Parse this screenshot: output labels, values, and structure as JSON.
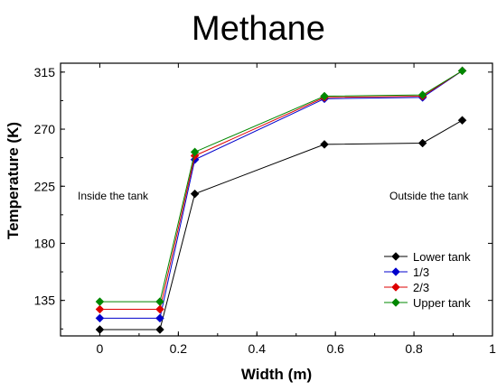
{
  "chart_data": {
    "type": "line",
    "title": "Methane",
    "xlabel": "Width (m)",
    "ylabel": "Temperature (K)",
    "xlim": [
      -0.1,
      1.0
    ],
    "ylim": [
      107,
      322
    ],
    "xticks": [
      {
        "value": 0,
        "label": "0"
      },
      {
        "value": 0.2,
        "label": "0.2"
      },
      {
        "value": 0.4,
        "label": "0.4"
      },
      {
        "value": 0.6,
        "label": "0.6"
      },
      {
        "value": 0.8,
        "label": "0.8"
      },
      {
        "value": 1.0,
        "label": "1"
      }
    ],
    "yticks": [
      {
        "value": 135,
        "label": "135"
      },
      {
        "value": 180,
        "label": "180"
      },
      {
        "value": 225,
        "label": "225"
      },
      {
        "value": 270,
        "label": "270"
      },
      {
        "value": 315,
        "label": "315"
      }
    ],
    "grid": false,
    "legend_position": "bottom-right",
    "annotations": [
      "Inside the tank",
      "Outside the tank"
    ],
    "x": [
      0,
      0.153,
      0.242,
      0.572,
      0.822,
      0.923
    ],
    "series": [
      {
        "name": "Lower tank",
        "color": "#000000",
        "values": [
          112,
          112,
          219,
          258,
          259,
          277
        ]
      },
      {
        "name": "1/3",
        "color": "#0000cc",
        "values": [
          121,
          121,
          246,
          294,
          295,
          316
        ]
      },
      {
        "name": "2/3",
        "color": "#dd0000",
        "values": [
          128,
          128,
          249,
          295,
          296,
          316
        ]
      },
      {
        "name": "Upper tank",
        "color": "#008800",
        "values": [
          134,
          134,
          252,
          296,
          297,
          316
        ]
      }
    ]
  }
}
